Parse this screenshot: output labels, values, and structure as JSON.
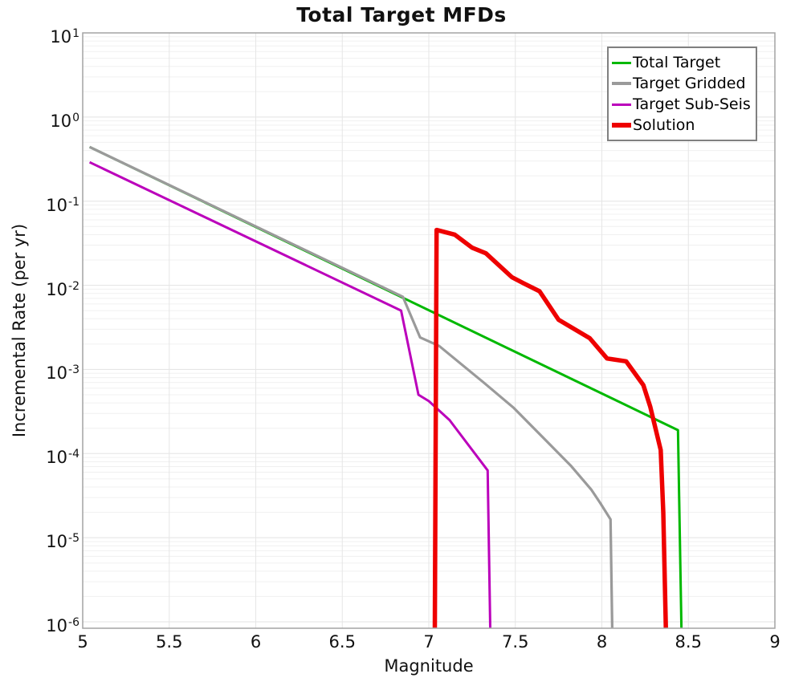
{
  "title": "Total Target MFDs",
  "axes": {
    "xlabel": "Magnitude",
    "ylabel": "Incremental Rate (per yr)",
    "x_ticks": [
      5,
      5.5,
      6,
      6.5,
      7,
      7.5,
      8,
      8.5,
      9
    ],
    "x_tick_labels": [
      "5",
      "5.5",
      "6",
      "6.5",
      "7",
      "7.5",
      "8",
      "8.5",
      "9"
    ],
    "y_tick_exponents": [
      1,
      0,
      -1,
      -2,
      -3,
      -4,
      -5,
      -6
    ],
    "grid_color_minor": "#f0f0f0",
    "grid_color_major": "#e3e3e3",
    "grid_color_vertical": "#e6e6e6",
    "border_color": "#a3a3a3"
  },
  "chart_data": {
    "type": "line",
    "title": "Total Target MFDs",
    "xlabel": "Magnitude",
    "ylabel": "Incremental Rate (per yr)",
    "x_scale": "linear",
    "y_scale": "log",
    "xlim": [
      5,
      9
    ],
    "ylim": [
      1e-06,
      10
    ],
    "grid": true,
    "legend_position": "upper right",
    "series": [
      {
        "name": "Total Target",
        "color": "#00b800",
        "line_width": 3,
        "points": [
          [
            5.04,
            0.44
          ],
          [
            8.44,
            0.00019
          ],
          [
            8.46,
            8.5e-07
          ]
        ]
      },
      {
        "name": "Target Gridded",
        "color": "#9a9a9a",
        "line_width": 3.2,
        "points": [
          [
            5.04,
            0.44
          ],
          [
            6.85,
            0.0073
          ],
          [
            6.95,
            0.0024
          ],
          [
            7.06,
            0.0019
          ],
          [
            7.32,
            0.00069
          ],
          [
            7.49,
            0.00035
          ],
          [
            7.66,
            0.000155
          ],
          [
            7.82,
            7.2e-05
          ],
          [
            7.94,
            3.7e-05
          ],
          [
            7.99,
            2.6e-05
          ],
          [
            8.05,
            1.65e-05
          ],
          [
            8.06,
            8.5e-07
          ]
        ]
      },
      {
        "name": "Target Sub-Seis",
        "color": "#bb00bb",
        "line_width": 3,
        "points": [
          [
            5.04,
            0.29
          ],
          [
            6.84,
            0.005
          ],
          [
            6.94,
            0.0005
          ],
          [
            7.0,
            0.00042
          ],
          [
            7.12,
            0.00025
          ],
          [
            7.34,
            6.3e-05
          ],
          [
            7.355,
            8.5e-07
          ]
        ]
      },
      {
        "name": "Solution",
        "color": "#ee0000",
        "line_width": 5.5,
        "points": [
          [
            7.035,
            8.5e-07
          ],
          [
            7.045,
            0.0455
          ],
          [
            7.15,
            0.04
          ],
          [
            7.25,
            0.028
          ],
          [
            7.33,
            0.024
          ],
          [
            7.48,
            0.0125
          ],
          [
            7.55,
            0.0105
          ],
          [
            7.64,
            0.0085
          ],
          [
            7.75,
            0.0039
          ],
          [
            7.93,
            0.00235
          ],
          [
            8.03,
            0.00135
          ],
          [
            8.14,
            0.00125
          ],
          [
            8.24,
            0.00065
          ],
          [
            8.28,
            0.00036
          ],
          [
            8.34,
            0.00011
          ],
          [
            8.355,
            2e-05
          ],
          [
            8.37,
            8.5e-07
          ]
        ]
      }
    ]
  },
  "legend": {
    "items": [
      {
        "label": "Total Target",
        "color": "#00b800",
        "swatch_height": 3
      },
      {
        "label": "Target Gridded",
        "color": "#9a9a9a",
        "swatch_height": 3.2
      },
      {
        "label": "Target Sub-Seis",
        "color": "#bb00bb",
        "swatch_height": 3
      },
      {
        "label": "Solution",
        "color": "#ee0000",
        "swatch_height": 5.5
      }
    ]
  }
}
